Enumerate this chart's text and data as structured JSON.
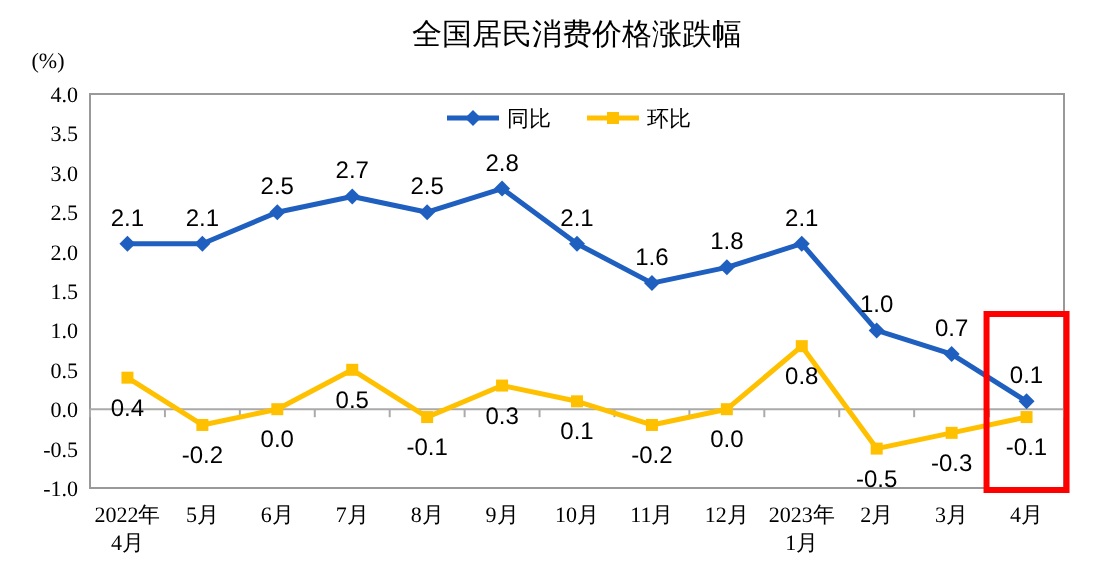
{
  "chart_data": {
    "type": "line",
    "title": "全国居民消费价格涨跌幅",
    "ylabel": "(%)",
    "categories": [
      "2022年\n4月",
      "5月",
      "6月",
      "7月",
      "8月",
      "9月",
      "10月",
      "11月",
      "12月",
      "2023年\n1月",
      "2月",
      "3月",
      "4月"
    ],
    "series": [
      {
        "name": "同比",
        "color": "#1f5fbf",
        "marker": "diamond",
        "values": [
          2.1,
          2.1,
          2.5,
          2.7,
          2.5,
          2.8,
          2.1,
          1.6,
          1.8,
          2.1,
          1.0,
          0.7,
          0.1
        ],
        "value_labels": [
          "2.1",
          "2.1",
          "2.5",
          "2.7",
          "2.5",
          "2.8",
          "2.1",
          "1.6",
          "1.8",
          "2.1",
          "1.0",
          "0.7",
          "0.1"
        ]
      },
      {
        "name": "环比",
        "color": "#ffc000",
        "marker": "square",
        "values": [
          0.4,
          -0.2,
          0.0,
          0.5,
          -0.1,
          0.3,
          0.1,
          -0.2,
          0.0,
          0.8,
          -0.5,
          -0.3,
          -0.1
        ],
        "value_labels": [
          "0.4",
          "-0.2",
          "0.0",
          "0.5",
          "-0.1",
          "0.3",
          "0.1",
          "-0.2",
          "0.0",
          "0.8",
          "-0.5",
          "-0.3",
          "-0.1"
        ]
      }
    ],
    "ylim": [
      -1.0,
      4.0
    ],
    "yticks": [
      {
        "value": -1,
        "label": "-1.0"
      },
      {
        "value": -0.5,
        "label": "-0.5"
      },
      {
        "value": 0,
        "label": "0.0"
      },
      {
        "value": 0.5,
        "label": "0.5"
      },
      {
        "value": 1,
        "label": "1.0"
      },
      {
        "value": 1.5,
        "label": "1.5"
      },
      {
        "value": 2,
        "label": "2.0"
      },
      {
        "value": 2.5,
        "label": "2.5"
      },
      {
        "value": 3,
        "label": "3.0"
      },
      {
        "value": 3.5,
        "label": "3.5"
      },
      {
        "value": 4,
        "label": "4.0"
      }
    ],
    "legend": "top"
  }
}
